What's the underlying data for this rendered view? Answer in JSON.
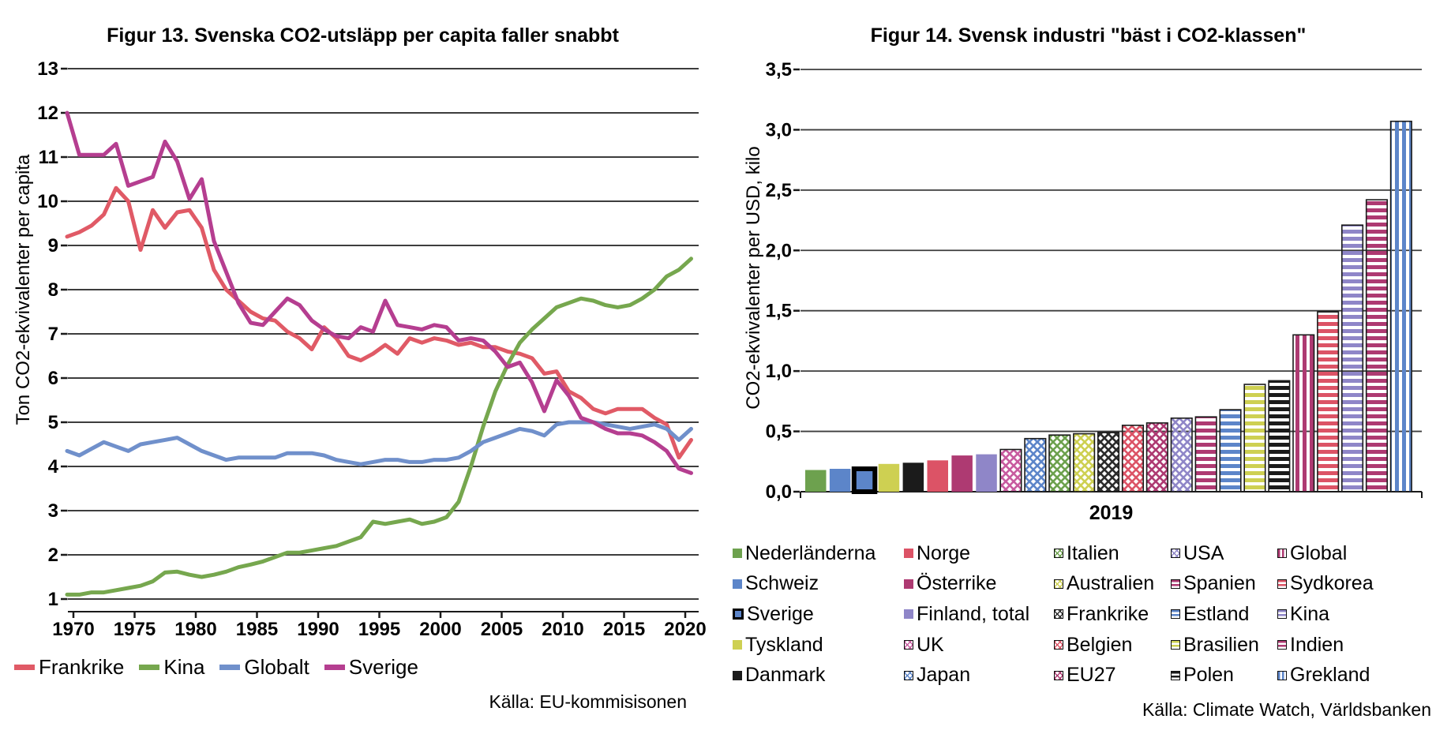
{
  "page": {
    "background": "#ffffff"
  },
  "chart_data": [
    {
      "type": "line",
      "title": "Figur 13. Svenska CO2-utsläpp per capita faller snabbt",
      "ylabel": "Ton CO2-ekvivalenter per capita",
      "source": "Källa: EU-kommisisonen",
      "x_start_year": 1970,
      "x_end_year": 2021,
      "xticks": [
        1970,
        1975,
        1980,
        1985,
        1990,
        1995,
        2000,
        2005,
        2010,
        2015,
        2020
      ],
      "ylim": [
        1,
        13
      ],
      "ytick_step": 1,
      "grid": true,
      "legend_position": "bottom",
      "grid_color": "#3d3d3d",
      "series": [
        {
          "name": "Frankrike",
          "color": "#e05a66",
          "values": [
            9.2,
            9.3,
            9.45,
            9.7,
            10.3,
            10.0,
            8.9,
            9.8,
            9.4,
            9.75,
            9.8,
            9.4,
            8.45,
            8.0,
            7.75,
            7.5,
            7.35,
            7.3,
            7.05,
            6.9,
            6.65,
            7.15,
            6.9,
            6.5,
            6.4,
            6.55,
            6.75,
            6.55,
            6.9,
            6.8,
            6.9,
            6.85,
            6.75,
            6.8,
            6.7,
            6.7,
            6.6,
            6.55,
            6.45,
            6.1,
            6.15,
            5.7,
            5.55,
            5.3,
            5.2,
            5.3,
            5.3,
            5.3,
            5.1,
            4.95,
            4.2,
            4.6
          ]
        },
        {
          "name": "Kina",
          "color": "#76a74e",
          "values": [
            1.1,
            1.1,
            1.15,
            1.15,
            1.2,
            1.25,
            1.3,
            1.4,
            1.6,
            1.62,
            1.55,
            1.5,
            1.55,
            1.62,
            1.72,
            1.78,
            1.85,
            1.95,
            2.05,
            2.05,
            2.1,
            2.15,
            2.2,
            2.3,
            2.4,
            2.75,
            2.7,
            2.75,
            2.8,
            2.7,
            2.75,
            2.85,
            3.2,
            4.0,
            4.9,
            5.7,
            6.3,
            6.8,
            7.1,
            7.35,
            7.6,
            7.7,
            7.8,
            7.75,
            7.65,
            7.6,
            7.65,
            7.8,
            8.0,
            8.3,
            8.45,
            8.7
          ]
        },
        {
          "name": "Globalt",
          "color": "#7090cb",
          "values": [
            4.35,
            4.25,
            4.4,
            4.55,
            4.45,
            4.35,
            4.5,
            4.55,
            4.6,
            4.65,
            4.5,
            4.35,
            4.25,
            4.15,
            4.2,
            4.2,
            4.2,
            4.2,
            4.3,
            4.3,
            4.3,
            4.25,
            4.15,
            4.1,
            4.05,
            4.1,
            4.15,
            4.15,
            4.1,
            4.1,
            4.15,
            4.15,
            4.2,
            4.35,
            4.55,
            4.65,
            4.75,
            4.85,
            4.8,
            4.7,
            4.95,
            5.0,
            5.0,
            5.0,
            4.95,
            4.9,
            4.85,
            4.9,
            4.95,
            4.85,
            4.6,
            4.85
          ]
        },
        {
          "name": "Sverige",
          "color": "#b53e90",
          "values": [
            12.0,
            11.05,
            11.05,
            11.05,
            11.3,
            10.35,
            10.45,
            10.55,
            11.35,
            10.9,
            10.05,
            10.5,
            9.1,
            8.4,
            7.7,
            7.25,
            7.2,
            7.5,
            7.8,
            7.65,
            7.3,
            7.1,
            6.95,
            6.9,
            7.15,
            7.05,
            7.75,
            7.2,
            7.15,
            7.1,
            7.2,
            7.15,
            6.85,
            6.9,
            6.85,
            6.6,
            6.25,
            6.35,
            5.9,
            5.25,
            5.95,
            5.6,
            5.1,
            5.0,
            4.85,
            4.75,
            4.75,
            4.7,
            4.55,
            4.35,
            3.95,
            3.85
          ]
        }
      ]
    },
    {
      "type": "bar",
      "title": "Figur 14. Svensk industri \"bäst i CO2-klassen\"",
      "ylabel": "CO2-ekvivalenter per USD, kilo",
      "xlabel": "2019",
      "source": "Källa: Climate Watch, Världsbanken",
      "ylim": [
        0,
        3.5
      ],
      "ytick_step": 0.5,
      "decimal_comma": true,
      "grid": true,
      "grid_color": "#3d3d3d",
      "legend": {
        "columns": 5,
        "rows": 5,
        "order": "column-major"
      },
      "bars": [
        {
          "label": "Nederländerna",
          "value": 0.18,
          "color": "#6da14e",
          "pattern": "solid"
        },
        {
          "label": "Schweiz",
          "value": 0.19,
          "color": "#5c85c9",
          "pattern": "solid"
        },
        {
          "label": "Sverige",
          "value": 0.19,
          "color": "#5c85c9",
          "pattern": "solid",
          "highlight": true
        },
        {
          "label": "Tyskland",
          "value": 0.23,
          "color": "#ced052",
          "pattern": "solid"
        },
        {
          "label": "Danmark",
          "value": 0.24,
          "color": "#1b1b1b",
          "pattern": "solid"
        },
        {
          "label": "Norge",
          "value": 0.26,
          "color": "#dc5366",
          "pattern": "solid"
        },
        {
          "label": "Österrike",
          "value": 0.3,
          "color": "#ae3a72",
          "pattern": "solid"
        },
        {
          "label": "Finland, total",
          "value": 0.31,
          "color": "#8f86c8",
          "pattern": "solid"
        },
        {
          "label": "UK",
          "value": 0.35,
          "color": "#c85b9f",
          "pattern": "crosshatch"
        },
        {
          "label": "Japan",
          "value": 0.44,
          "color": "#5c85c9",
          "pattern": "crosshatch"
        },
        {
          "label": "Italien",
          "value": 0.47,
          "color": "#6da14e",
          "pattern": "crosshatch"
        },
        {
          "label": "Australien",
          "value": 0.48,
          "color": "#ced052",
          "pattern": "crosshatch"
        },
        {
          "label": "Frankrike",
          "value": 0.49,
          "color": "#2b2b2b",
          "pattern": "crosshatch"
        },
        {
          "label": "Belgien",
          "value": 0.55,
          "color": "#dc5366",
          "pattern": "crosshatch"
        },
        {
          "label": "EU27",
          "value": 0.57,
          "color": "#ae3a72",
          "pattern": "crosshatch"
        },
        {
          "label": "USA",
          "value": 0.61,
          "color": "#8f86c8",
          "pattern": "crosshatch"
        },
        {
          "label": "Spanien",
          "value": 0.62,
          "color": "#ae3a72",
          "pattern": "hstripe"
        },
        {
          "label": "Estland",
          "value": 0.68,
          "color": "#5c85c9",
          "pattern": "hstripe"
        },
        {
          "label": "Brasilien",
          "value": 0.89,
          "color": "#ced052",
          "pattern": "hstripe"
        },
        {
          "label": "Polen",
          "value": 0.92,
          "color": "#1b1b1b",
          "pattern": "hstripe"
        },
        {
          "label": "Global",
          "value": 1.3,
          "color": "#ae3a72",
          "pattern": "vstripe"
        },
        {
          "label": "Sydkorea",
          "value": 1.49,
          "color": "#dc5366",
          "pattern": "hstripe"
        },
        {
          "label": "Kina",
          "value": 2.21,
          "color": "#8f86c8",
          "pattern": "hstripe"
        },
        {
          "label": "Indien",
          "value": 2.42,
          "color": "#ae3a72",
          "pattern": "hstripe"
        },
        {
          "label": "Grekland",
          "value": 3.07,
          "color": "#5c85c9",
          "pattern": "vstripe"
        }
      ]
    }
  ]
}
